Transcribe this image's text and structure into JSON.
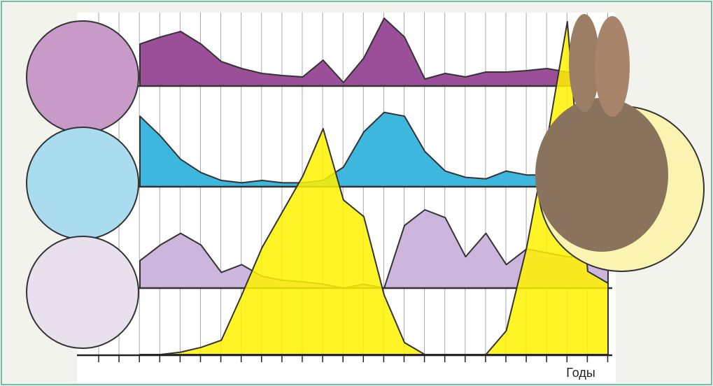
{
  "chart_data": {
    "type": "area",
    "x_label": "Годы",
    "ylim": [
      0,
      100
    ],
    "series": [
      {
        "color": "#9a4f98",
        "values": [
          60,
          70,
          78,
          60,
          35,
          25,
          18,
          15,
          13,
          37,
          5,
          40,
          97,
          70,
          10,
          18,
          13,
          20,
          20,
          22,
          25,
          20,
          20,
          20
        ]
      },
      {
        "color": "#3db7de",
        "values": [
          90,
          65,
          35,
          18,
          8,
          5,
          8,
          5,
          5,
          8,
          25,
          70,
          95,
          90,
          45,
          20,
          12,
          10,
          20,
          15,
          15,
          15,
          15,
          15
        ]
      },
      {
        "color": "#cdb6de",
        "values": [
          35,
          55,
          70,
          55,
          20,
          30,
          15,
          10,
          8,
          5,
          0,
          5,
          0,
          80,
          100,
          90,
          40,
          70,
          30,
          50,
          45,
          40,
          40,
          40
        ]
      },
      {
        "color": "#fff200",
        "values": [
          0,
          0,
          1,
          3,
          6,
          25,
          45,
          60,
          75,
          95,
          65,
          58,
          25,
          5,
          0,
          0,
          0,
          0,
          10,
          45,
          90,
          140,
          35,
          30
        ]
      }
    ]
  }
}
